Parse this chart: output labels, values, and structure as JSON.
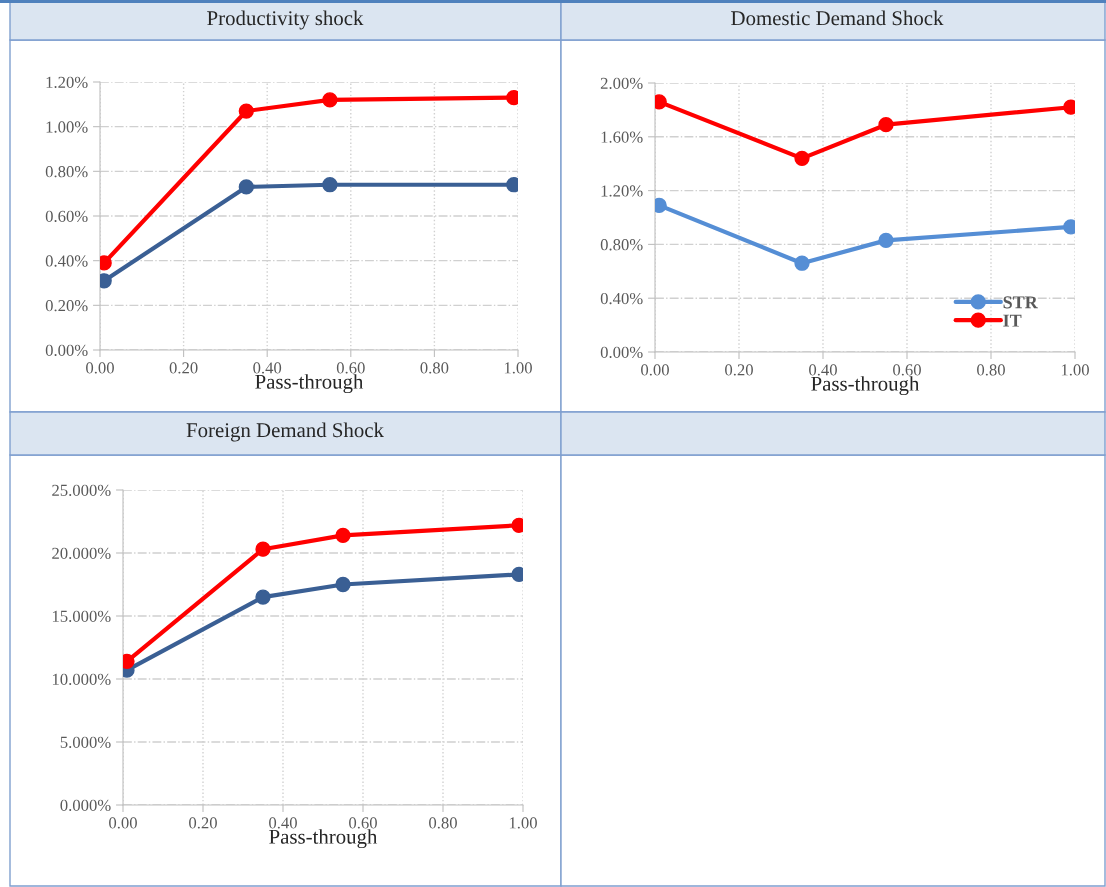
{
  "chart_data": [
    {
      "type": "line",
      "title": "Productivity shock",
      "xlabel": "Pass-through",
      "x": [
        0.01,
        0.35,
        0.55,
        0.99
      ],
      "series": [
        {
          "color": "#3a5f94",
          "values": [
            0.31,
            0.73,
            0.74,
            0.74
          ]
        },
        {
          "color": "#ff0000",
          "values": [
            0.39,
            1.07,
            1.12,
            1.13
          ]
        }
      ],
      "xlim": [
        0,
        1
      ],
      "xticks": [
        {
          "value": 0,
          "label": "0.00"
        },
        {
          "value": 0.2,
          "label": "0.20"
        },
        {
          "value": 0.4,
          "label": "0.40"
        },
        {
          "value": 0.6,
          "label": "0.60"
        },
        {
          "value": 0.8,
          "label": "0.80"
        },
        {
          "value": 1,
          "label": "1.00"
        }
      ],
      "ylim": [
        0,
        1.2
      ],
      "yticks": [
        {
          "value": 0,
          "label": "0.00%"
        },
        {
          "value": 0.2,
          "label": "0.20%"
        },
        {
          "value": 0.4,
          "label": "0.40%"
        },
        {
          "value": 0.6,
          "label": "0.60%"
        },
        {
          "value": 0.8,
          "label": "0.80%"
        },
        {
          "value": 1.0,
          "label": "1.00%"
        },
        {
          "value": 1.2,
          "label": "1.20%"
        }
      ],
      "grid": true,
      "marker": "circle",
      "line_style": "solid"
    },
    {
      "type": "line",
      "title": "Domestic Demand Shock",
      "xlabel": "Pass-through",
      "x": [
        0.01,
        0.35,
        0.55,
        0.99
      ],
      "series": [
        {
          "name": "STR",
          "color": "#558ed5",
          "values": [
            1.09,
            0.66,
            0.83,
            0.93
          ]
        },
        {
          "name": "IT",
          "color": "#ff0000",
          "values": [
            1.86,
            1.44,
            1.69,
            1.82
          ]
        }
      ],
      "xlim": [
        0,
        1
      ],
      "xticks": [
        {
          "value": 0,
          "label": "0.00"
        },
        {
          "value": 0.2,
          "label": "0.20"
        },
        {
          "value": 0.4,
          "label": "0.40"
        },
        {
          "value": 0.6,
          "label": "0.60"
        },
        {
          "value": 0.8,
          "label": "0.80"
        },
        {
          "value": 1,
          "label": "1.00"
        }
      ],
      "ylim": [
        0,
        2.0
      ],
      "yticks": [
        {
          "value": 0,
          "label": "0.00%"
        },
        {
          "value": 0.4,
          "label": "0.40%"
        },
        {
          "value": 0.8,
          "label": "0.80%"
        },
        {
          "value": 1.2,
          "label": "1.20%"
        },
        {
          "value": 1.6,
          "label": "1.60%"
        },
        {
          "value": 2.0,
          "label": "2.00%"
        }
      ],
      "grid": true,
      "marker": "circle",
      "line_style": "solid",
      "legend": "bottom right"
    },
    {
      "type": "line",
      "title": "Foreign Demand Shock",
      "xlabel": "Pass-through",
      "x": [
        0.01,
        0.35,
        0.55,
        0.99
      ],
      "series": [
        {
          "color": "#3a5f94",
          "values": [
            10.7,
            16.5,
            17.5,
            18.3
          ]
        },
        {
          "color": "#ff0000",
          "values": [
            11.4,
            20.3,
            21.4,
            22.2
          ]
        }
      ],
      "xlim": [
        0,
        1
      ],
      "xticks": [
        {
          "value": 0,
          "label": "0.00"
        },
        {
          "value": 0.2,
          "label": "0.20"
        },
        {
          "value": 0.4,
          "label": "0.40"
        },
        {
          "value": 0.6,
          "label": "0.60"
        },
        {
          "value": 0.8,
          "label": "0.80"
        },
        {
          "value": 1,
          "label": "1.00"
        }
      ],
      "ylim": [
        0,
        25
      ],
      "yticks": [
        {
          "value": 0,
          "label": "0.000%"
        },
        {
          "value": 5,
          "label": "5.000%"
        },
        {
          "value": 10,
          "label": "10.000%"
        },
        {
          "value": 15,
          "label": "15.000%"
        },
        {
          "value": 20,
          "label": "20.000%"
        },
        {
          "value": 25,
          "label": "25.000%"
        }
      ],
      "grid": true,
      "marker": "circle",
      "line_style": "solid"
    }
  ]
}
